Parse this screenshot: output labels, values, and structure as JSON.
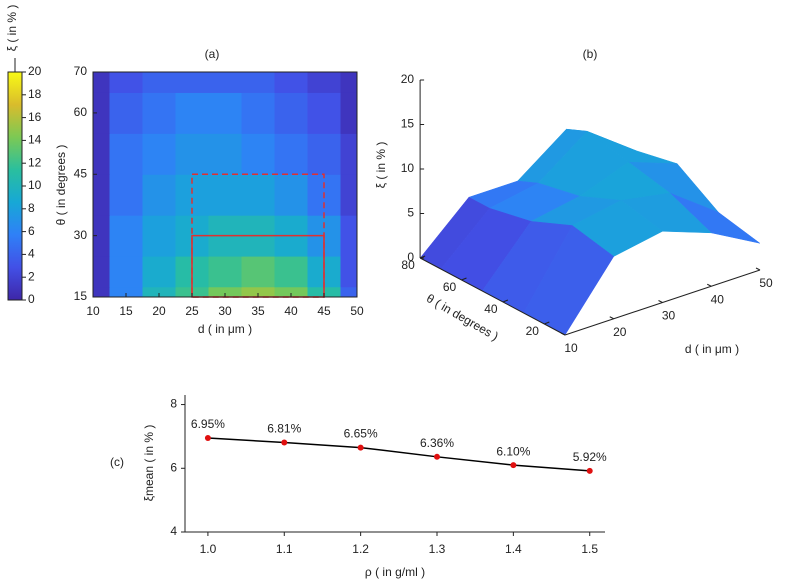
{
  "chart_data": [
    {
      "type": "contour",
      "label": "(a)",
      "xlabel": "d ( in μm )",
      "ylabel": "θ ( in degrees )",
      "colorbar_label": "ξ ( in % )",
      "colormap": [
        "#3e26a8",
        "#4250e6",
        "#2f80f7",
        "#17a8d6",
        "#2abf9e",
        "#7cc954",
        "#d9bc2c",
        "#f9fb15"
      ],
      "clim": [
        0,
        20
      ],
      "cticks": [
        0,
        2,
        4,
        6,
        8,
        10,
        12,
        14,
        16,
        18,
        20
      ],
      "x": [
        10,
        15,
        20,
        25,
        30,
        35,
        40,
        45,
        50
      ],
      "y": [
        15,
        20,
        30,
        40,
        50,
        60,
        70
      ],
      "z": [
        [
          1,
          6,
          10,
          12,
          14,
          15,
          14,
          11,
          4
        ],
        [
          1,
          6,
          9,
          11,
          12,
          13,
          12,
          9,
          3
        ],
        [
          1,
          6,
          8,
          9,
          10,
          10,
          9,
          7,
          3
        ],
        [
          1,
          5,
          7,
          8,
          8,
          8,
          7,
          5,
          2
        ],
        [
          1,
          5,
          6,
          7,
          7,
          6,
          5,
          4,
          2
        ],
        [
          1,
          4,
          5,
          6,
          6,
          5,
          4,
          3,
          1
        ],
        [
          1,
          3,
          4,
          4,
          4,
          4,
          3,
          2,
          1
        ]
      ],
      "xlim": [
        10,
        50
      ],
      "ylim": [
        15,
        70
      ],
      "xticks": [
        10,
        15,
        20,
        25,
        30,
        35,
        40,
        45,
        50
      ],
      "yticks": [
        15,
        30,
        45,
        60,
        70
      ],
      "regions": [
        {
          "x": [
            25,
            45
          ],
          "y": [
            15,
            45
          ],
          "style": "dashed",
          "color": "#e03030"
        },
        {
          "x": [
            25,
            45
          ],
          "y": [
            15,
            30
          ],
          "style": "solid",
          "color": "#e03030"
        }
      ]
    },
    {
      "type": "surface",
      "label": "(b)",
      "xlabel": "d ( in μm )",
      "ylabel": "θ ( in degrees )",
      "zlabel": "ξ ( in % )",
      "x": [
        10,
        20,
        30,
        40,
        50
      ],
      "y": [
        10,
        30,
        50,
        70,
        80
      ],
      "z": [
        [
          0,
          7,
          8,
          6,
          3
        ],
        [
          0,
          8,
          9,
          8,
          4
        ],
        [
          0,
          6,
          7,
          9,
          7
        ],
        [
          0,
          5,
          6,
          10,
          6
        ],
        [
          0,
          5,
          5,
          9,
          5
        ]
      ],
      "xticks": [
        10,
        20,
        30,
        40,
        50
      ],
      "yticks": [
        20,
        40,
        60,
        80
      ],
      "zticks": [
        0,
        5,
        10,
        15,
        20
      ],
      "xlim": [
        10,
        50
      ],
      "ylim": [
        10,
        80
      ],
      "zlim": [
        0,
        20
      ]
    },
    {
      "type": "line",
      "label": "(c)",
      "xlabel": "ρ ( in g/ml )",
      "ylabel": "ξmean ( in % )",
      "x": [
        1.0,
        1.1,
        1.2,
        1.3,
        1.4,
        1.5
      ],
      "series": [
        {
          "color": "#000000",
          "marker_color": "#e01010",
          "values": [
            6.95,
            6.81,
            6.65,
            6.36,
            6.1,
            5.92
          ],
          "value_labels": [
            "6.95%",
            "6.81%",
            "6.65%",
            "6.36%",
            "6.10%",
            "5.92%"
          ]
        }
      ],
      "xlim": [
        0.97,
        1.52
      ],
      "ylim": [
        4,
        8.3
      ],
      "xticks": [
        {
          "value": 1,
          "label": "1.0"
        },
        1.1,
        1.2,
        1.3,
        1.4,
        1.5
      ],
      "yticks": [
        4,
        6,
        8
      ]
    }
  ]
}
